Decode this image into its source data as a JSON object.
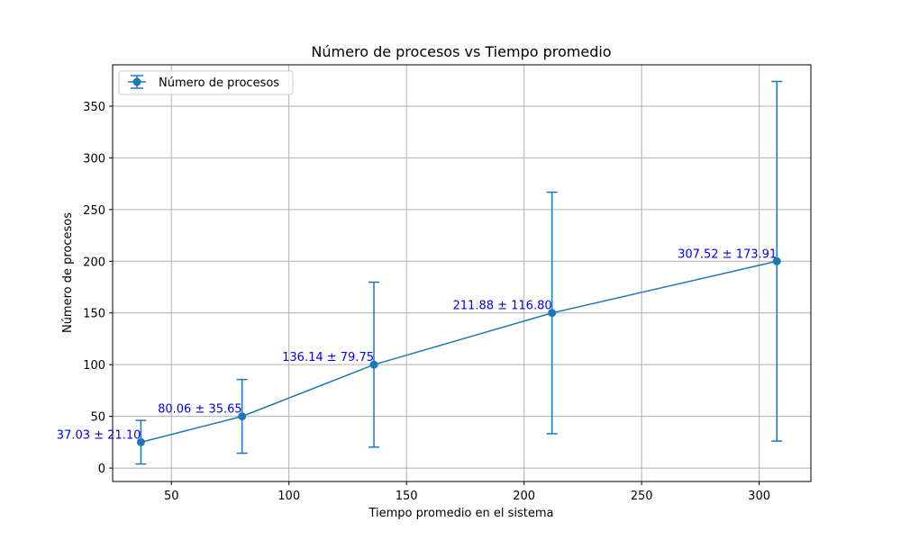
{
  "chart_data": {
    "type": "line",
    "title": "Número de procesos vs Tiempo promedio",
    "xlabel": "Tiempo promedio en el sistema",
    "ylabel": "Número de procesos",
    "xlim": [
      25,
      322
    ],
    "ylim": [
      -13,
      390
    ],
    "xticks": [
      50,
      100,
      150,
      200,
      250,
      300
    ],
    "yticks": [
      0,
      50,
      100,
      150,
      200,
      250,
      300,
      350
    ],
    "grid": true,
    "legend_position": "top-left",
    "colors": {
      "series": "#1f77b4",
      "annotation": "#0000ff",
      "grid": "#b0b0b0"
    },
    "series": [
      {
        "name": "Número de procesos",
        "x": [
          37.03,
          80.06,
          136.14,
          211.88,
          307.52
        ],
        "y": [
          25,
          50,
          100,
          150,
          200
        ],
        "yerr": [
          21.1,
          35.65,
          79.75,
          116.8,
          173.91
        ],
        "labels": [
          "37.03 ± 21.10",
          "80.06 ± 35.65",
          "136.14 ± 79.75",
          "211.88 ± 116.80",
          "307.52 ± 173.91"
        ]
      }
    ]
  }
}
